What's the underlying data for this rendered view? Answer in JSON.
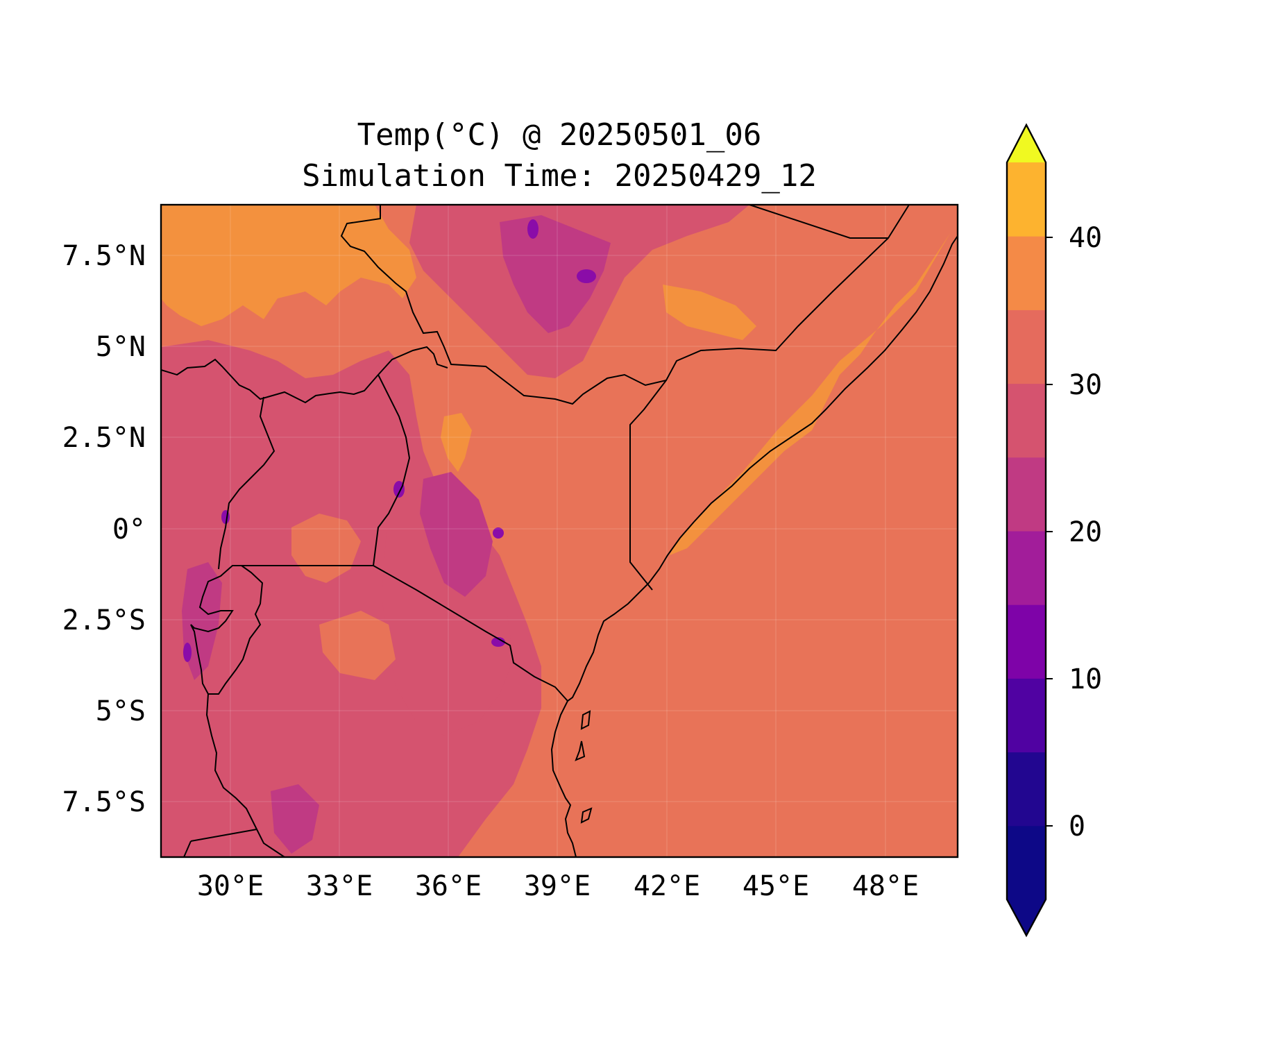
{
  "title": {
    "line1": "Temp(°C) @ 20250501_06",
    "line2": "Simulation Time: 20250429_12"
  },
  "axes": {
    "lon_ticks": [
      "30°E",
      "33°E",
      "36°E",
      "39°E",
      "42°E",
      "45°E",
      "48°E"
    ],
    "lat_ticks": [
      "7.5°N",
      "5°N",
      "2.5°N",
      "0°",
      "2.5°S",
      "5°S",
      "7.5°S"
    ],
    "lon_range": [
      28,
      50
    ],
    "lat_range": [
      -9,
      9
    ]
  },
  "colorbar": {
    "ticks": [
      "40",
      "30",
      "20",
      "10",
      "0"
    ],
    "levels": [
      -5,
      0,
      5,
      10,
      15,
      20,
      25,
      30,
      35,
      40,
      45
    ],
    "extend": "both",
    "colors": [
      "#0d0887",
      "#220690",
      "#5002a2",
      "#7e03a8",
      "#a21d9a",
      "#c03a83",
      "#d5536f",
      "#e56b5d",
      "#f48a47",
      "#fdb32f",
      "#f0f921"
    ],
    "over_color": "#f0f921",
    "under_color": "#0d0887"
  },
  "field": {
    "variable": "Temp(°C)",
    "background_color": "#e87358",
    "warm_color": "#f3913e",
    "mild_color": "#d5536f",
    "cool_color": "#c03a83",
    "cold_color": "#8a0ca8"
  }
}
